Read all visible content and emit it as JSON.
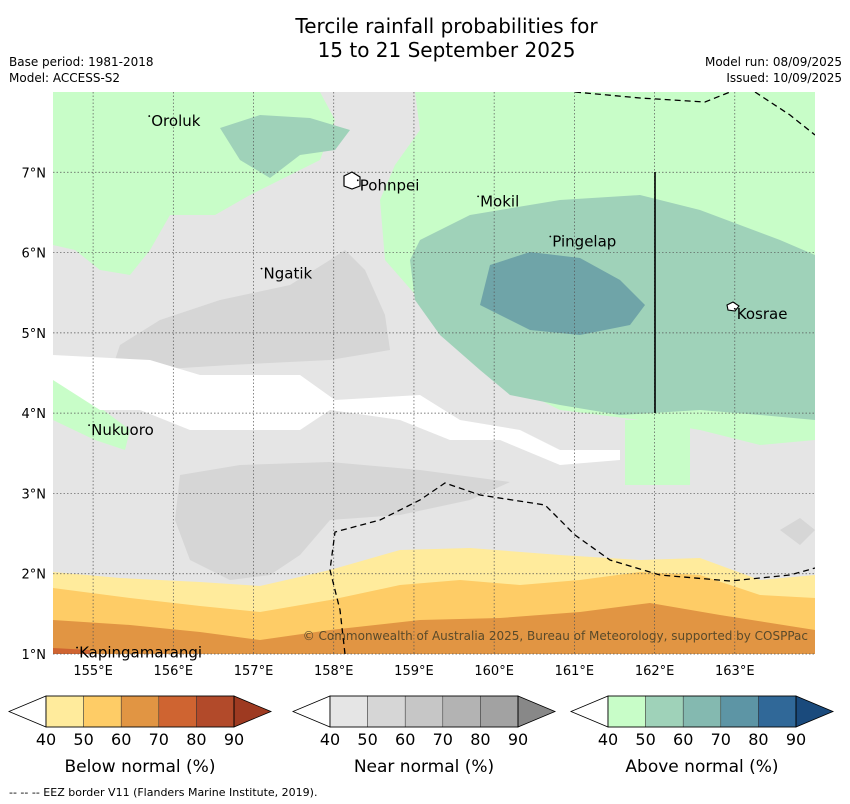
{
  "title": {
    "line1": "Tercile rainfall probabilities for",
    "line2": "15 to 21 September 2025"
  },
  "meta": {
    "base_period": "Base period: 1981-2018",
    "model": "Model: ACCESS-S2",
    "model_run": "Model run: 08/09/2025",
    "issued": "Issued: 10/09/2025"
  },
  "map": {
    "lon_ticks": [
      "155°E",
      "156°E",
      "157°E",
      "158°E",
      "159°E",
      "160°E",
      "161°E",
      "162°E",
      "163°E"
    ],
    "lat_ticks": [
      "7°N",
      "6°N",
      "5°N",
      "4°N",
      "3°N",
      "2°N",
      "1°N"
    ],
    "lon_values": [
      155,
      156,
      157,
      158,
      159,
      160,
      161,
      162,
      163
    ],
    "lat_values": [
      7,
      6,
      5,
      4,
      3,
      2,
      1
    ],
    "extent": {
      "lon": [
        154.5,
        164.0
      ],
      "lat": [
        1.0,
        8.0
      ]
    },
    "places": [
      {
        "name": "Oroluk",
        "lon": 155.7,
        "lat": 7.7
      },
      {
        "name": "Pohnpei",
        "lon": 158.3,
        "lat": 6.9
      },
      {
        "name": "Mokil",
        "lon": 159.8,
        "lat": 6.7
      },
      {
        "name": "Pingelap",
        "lon": 160.7,
        "lat": 6.2
      },
      {
        "name": "Ngatik",
        "lon": 157.1,
        "lat": 5.8
      },
      {
        "name": "Kosrae",
        "lon": 163.0,
        "lat": 5.3
      },
      {
        "name": "Nukuoro",
        "lon": 154.95,
        "lat": 3.85
      },
      {
        "name": "Kapingamarangi",
        "lon": 154.8,
        "lat": 1.08
      }
    ],
    "copyright": "© Commonwealth of Australia 2025, Bureau of Meteorology, supported by COSPPac"
  },
  "colorbars": [
    {
      "title": "Below normal (%)",
      "ticks": [
        "40",
        "50",
        "60",
        "70",
        "80",
        "90"
      ],
      "colors": [
        "#ffffff",
        "#ffeb9c",
        "#fecc66",
        "#e19543",
        "#cf6431",
        "#b24a2a",
        "#9e3a21"
      ]
    },
    {
      "title": "Near normal (%)",
      "ticks": [
        "40",
        "50",
        "60",
        "70",
        "80",
        "90"
      ],
      "colors": [
        "#ffffff",
        "#e5e5e5",
        "#d6d6d6",
        "#c6c6c6",
        "#b3b3b3",
        "#a2a2a2",
        "#888888"
      ]
    },
    {
      "title": "Above normal (%)",
      "ticks": [
        "40",
        "50",
        "60",
        "70",
        "80",
        "90"
      ],
      "colors": [
        "#ffffff",
        "#c8fdc8",
        "#9fd2b9",
        "#84b9b0",
        "#5d95a5",
        "#306898",
        "#1a4a7c"
      ]
    }
  ],
  "footnote": "--  --  -- EEZ border V11 (Flanders Marine Institute, 2019)."
}
